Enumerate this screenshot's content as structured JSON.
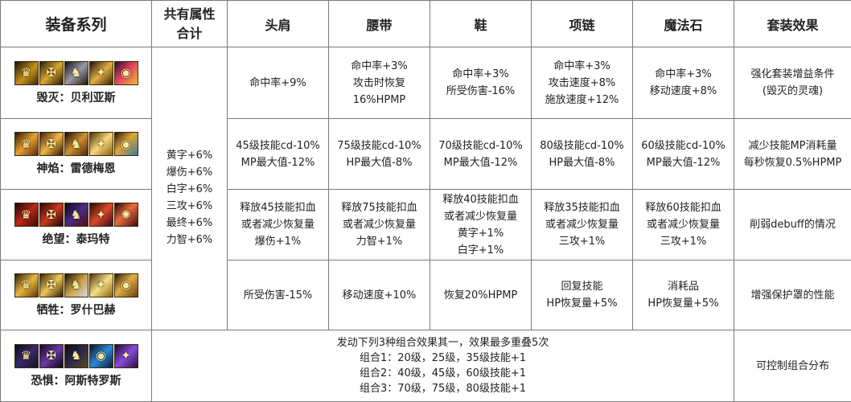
{
  "header": {
    "set_series": "装备系列",
    "shared_attr": [
      "共有属性",
      "合计"
    ],
    "shoulder": "头肩",
    "belt": "腰带",
    "shoes": "鞋",
    "necklace": "项链",
    "magic_stone": "魔法石",
    "set_effect": "套装效果"
  },
  "shared_attributes": [
    "黄字+6%",
    "爆伤+6%",
    "白字+6%",
    "三攻+6%",
    "最终+6%",
    "力智+6%"
  ],
  "rows": [
    {
      "name": "毁灭：贝利亚斯",
      "icons": [
        "helmet-icon",
        "armor-icon",
        "boots-icon",
        "necklace-icon",
        "orb-icon"
      ],
      "shoulder": [
        "命中率+9%"
      ],
      "belt": [
        "命中率+3%",
        "攻击时恢复",
        "16%HPMP"
      ],
      "shoes": [
        "命中率+3%",
        "所受伤害-16%"
      ],
      "necklace": [
        "命中率+3%",
        "攻击速度+8%",
        "施放速度+12%"
      ],
      "magic_stone": [
        "命中率+3%",
        "移动速度+8%"
      ],
      "set_effect": [
        "强化套装增益条件",
        "(毁灭的灵魂)"
      ]
    },
    {
      "name": "神焰：雷德梅恩",
      "icons": [
        "flame-helmet-icon",
        "flame-armor-icon",
        "flame-boots-icon",
        "flame-wings-icon",
        "flame-gem-icon"
      ],
      "shoulder": [
        "45级技能cd-10%",
        "MP最大值-12%"
      ],
      "belt": [
        "75级技能cd-10%",
        "HP最大值-8%"
      ],
      "shoes": [
        "70级技能cd-10%",
        "MP最大值-12%"
      ],
      "necklace": [
        "80级技能cd-10%",
        "HP最大值-8%"
      ],
      "magic_stone": [
        "60级技能cd-10%",
        "MP最大值-12%"
      ],
      "set_effect": [
        "减少技能MP消耗量",
        "每秒恢复0.5%HPMP"
      ]
    },
    {
      "name": "绝望：泰玛特",
      "icons": [
        "dark-helmet-icon",
        "dark-armor-icon",
        "dark-boots-icon",
        "dark-necklace-icon",
        "dark-star-icon"
      ],
      "shoulder": [
        "释放45技能扣血",
        "或者减少恢复量",
        "爆伤+1%"
      ],
      "belt": [
        "释放75技能扣血",
        "或者减少恢复量",
        "力智+1%"
      ],
      "shoes": [
        "释放40技能扣血",
        "或者减少恢复量",
        "黄字+1%",
        "白字+1%"
      ],
      "necklace": [
        "释放35技能扣血",
        "或者减少恢复量",
        "三攻+1%"
      ],
      "magic_stone": [
        "释放60技能扣血",
        "或者减少恢复量",
        "三攻+1%"
      ],
      "set_effect": [
        "削弱debuff的情况"
      ]
    },
    {
      "name": "牺牲：罗什巴赫",
      "icons": [
        "gold-helmet-icon",
        "gold-armor-icon",
        "gold-boots-icon",
        "gold-wings-icon",
        "gold-shield-icon"
      ],
      "shoulder": [
        "所受伤害-15%"
      ],
      "belt": [
        "移动速度+10%"
      ],
      "shoes": [
        "恢复20%HPMP"
      ],
      "necklace": [
        "回复技能",
        "HP恢复量+5%"
      ],
      "magic_stone": [
        "消耗品",
        "HP恢复量+5%"
      ],
      "set_effect": [
        "增强保护罩的性能"
      ]
    },
    {
      "name": "恐惧：阿斯特罗斯",
      "icons": [
        "shadow-helmet-icon",
        "shadow-armor-icon",
        "shadow-boots-icon",
        "shadow-eye-icon",
        "shadow-crystal-icon"
      ],
      "combo": [
        "发动下列3种组合效果其一，效果最多重叠5次",
        "组合1：20级，25级，35级技能+1",
        "组合2：40级，45级，60级技能+1",
        "组合3：70级，75级，80级技能+1"
      ],
      "set_effect": [
        "可控制组合分布"
      ]
    }
  ],
  "colors": {
    "border": "#7a7a7a",
    "icon_gold": "#c8921a",
    "icon_red": "#8a1a12",
    "icon_purple": "#3a2a6a"
  },
  "icon_glyphs": [
    "♛",
    "✠",
    "♞",
    "✦",
    "◉"
  ]
}
